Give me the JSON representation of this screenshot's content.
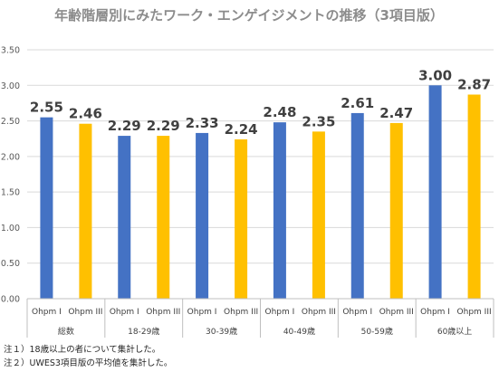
{
  "chart_data": {
    "type": "bar",
    "title": "年齢階層別にみたワーク・エンゲイジメントの推移（3項目版）",
    "xlabel": "",
    "ylabel": "",
    "ylim": [
      0,
      3.5
    ],
    "yticks": [
      "0.00",
      "0.50",
      "1.00",
      "1.50",
      "2.00",
      "2.50",
      "3.00",
      "3.50"
    ],
    "grid": true,
    "groups": [
      "総数",
      "18-29歳",
      "30-39歳",
      "40-49歳",
      "50-59歳",
      "60歳以上"
    ],
    "series": [
      {
        "name": "Ohpm I",
        "color": "#4472c4",
        "values": [
          2.55,
          2.29,
          2.33,
          2.48,
          2.61,
          3.0
        ],
        "labels": [
          "2.55",
          "2.29",
          "2.33",
          "2.48",
          "2.61",
          "3.00"
        ]
      },
      {
        "name": "Ohpm III",
        "color": "#ffc000",
        "values": [
          2.46,
          2.29,
          2.24,
          2.35,
          2.47,
          2.87
        ],
        "labels": [
          "2.46",
          "2.29",
          "2.24",
          "2.35",
          "2.47",
          "2.87"
        ]
      }
    ]
  },
  "notes": [
    "注１）18歳以上の者について集計した。",
    "注２）UWES3項目版の平均値を集計した。"
  ]
}
